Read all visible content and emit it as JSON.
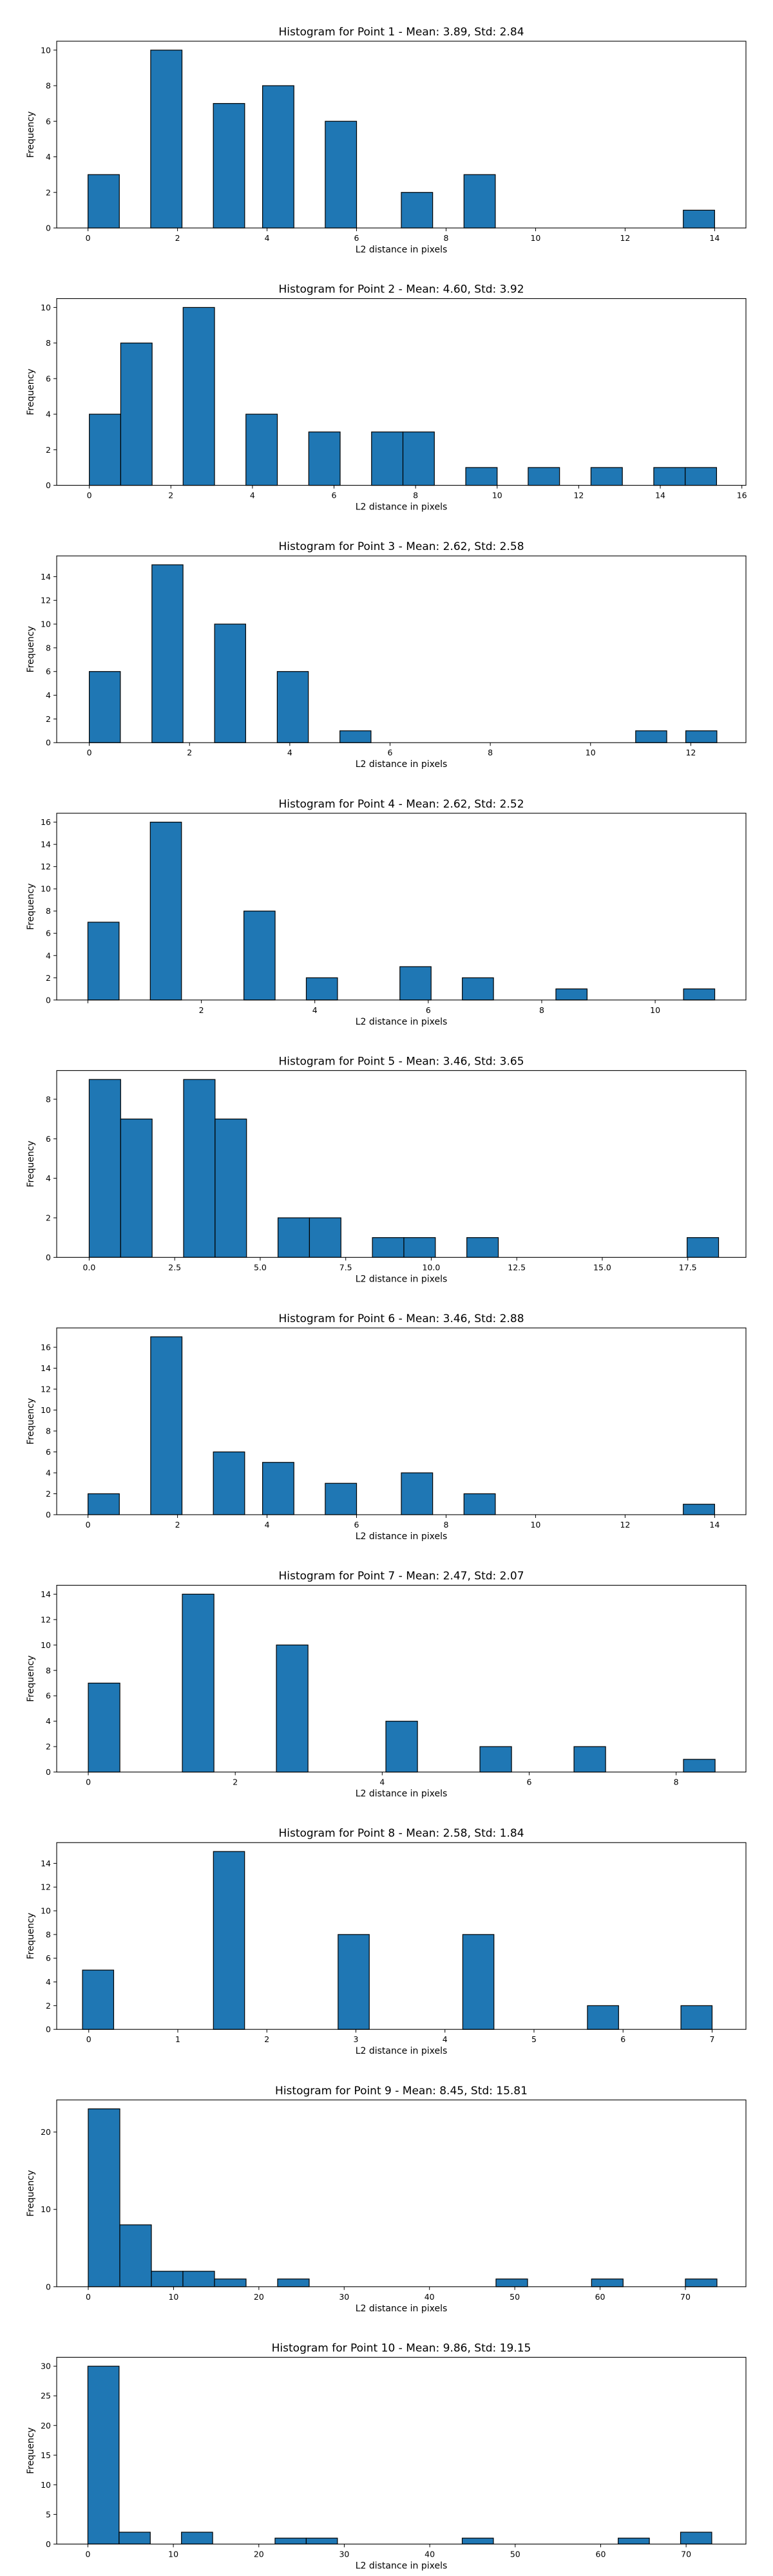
{
  "chart_data": [
    {
      "type": "bar",
      "title": "Histogram for Point 1 - Mean: 3.89, Std: 2.84",
      "xlabel": "L2 distance in pixels",
      "ylabel": "Frequency",
      "xlim": [
        -0.7,
        14.7
      ],
      "ylim": [
        0,
        10.5
      ],
      "xticks": [
        0,
        2,
        4,
        6,
        8,
        10,
        12,
        14
      ],
      "xtick_labels": [
        "0",
        "2",
        "4",
        "6",
        "8",
        "10",
        "12",
        "14"
      ],
      "yticks": [
        0,
        2,
        4,
        6,
        8,
        10
      ],
      "bins": [
        {
          "x0": 0.0,
          "x1": 0.7,
          "count": 3
        },
        {
          "x0": 1.4,
          "x1": 2.1,
          "count": 10
        },
        {
          "x0": 2.8,
          "x1": 3.5,
          "count": 7
        },
        {
          "x0": 3.9,
          "x1": 4.6,
          "count": 8
        },
        {
          "x0": 5.3,
          "x1": 6.0,
          "count": 6
        },
        {
          "x0": 7.0,
          "x1": 7.7,
          "count": 2
        },
        {
          "x0": 8.4,
          "x1": 9.1,
          "count": 3
        },
        {
          "x0": 13.3,
          "x1": 14.0,
          "count": 1
        }
      ]
    },
    {
      "type": "bar",
      "title": "Histogram for Point 2 - Mean: 4.60, Std: 3.92",
      "xlabel": "L2 distance in pixels",
      "ylabel": "Frequency",
      "xlim": [
        -0.8,
        16.1
      ],
      "ylim": [
        0,
        10.5
      ],
      "xticks": [
        0,
        2,
        4,
        6,
        8,
        10,
        12,
        14,
        16
      ],
      "xtick_labels": [
        "0",
        "2",
        "4",
        "6",
        "8",
        "10",
        "12",
        "14",
        "16"
      ],
      "yticks": [
        0,
        2,
        4,
        6,
        8,
        10
      ],
      "bins": [
        {
          "x0": 0.0,
          "x1": 0.77,
          "count": 4
        },
        {
          "x0": 0.77,
          "x1": 1.54,
          "count": 8
        },
        {
          "x0": 2.3,
          "x1": 3.07,
          "count": 10
        },
        {
          "x0": 3.84,
          "x1": 4.61,
          "count": 4
        },
        {
          "x0": 5.38,
          "x1": 6.15,
          "count": 3
        },
        {
          "x0": 6.92,
          "x1": 7.69,
          "count": 3
        },
        {
          "x0": 7.69,
          "x1": 8.46,
          "count": 3
        },
        {
          "x0": 9.23,
          "x1": 10.0,
          "count": 1
        },
        {
          "x0": 10.76,
          "x1": 11.53,
          "count": 1
        },
        {
          "x0": 12.3,
          "x1": 13.07,
          "count": 1
        },
        {
          "x0": 13.84,
          "x1": 14.61,
          "count": 1
        },
        {
          "x0": 14.61,
          "x1": 15.38,
          "count": 1
        }
      ]
    },
    {
      "type": "bar",
      "title": "Histogram for Point 3 - Mean: 2.62, Std: 2.58",
      "xlabel": "L2 distance in pixels",
      "ylabel": "Frequency",
      "xlim": [
        -0.65,
        13.1
      ],
      "ylim": [
        0,
        15.75
      ],
      "xticks": [
        0,
        2,
        4,
        6,
        8,
        10,
        12
      ],
      "xtick_labels": [
        "0",
        "2",
        "4",
        "6",
        "8",
        "10",
        "12"
      ],
      "yticks": [
        0,
        2,
        4,
        6,
        8,
        10,
        12,
        14
      ],
      "bins": [
        {
          "x0": 0.0,
          "x1": 0.62,
          "count": 6
        },
        {
          "x0": 1.25,
          "x1": 1.87,
          "count": 15
        },
        {
          "x0": 2.5,
          "x1": 3.12,
          "count": 10
        },
        {
          "x0": 3.75,
          "x1": 4.37,
          "count": 6
        },
        {
          "x0": 5.0,
          "x1": 5.62,
          "count": 1
        },
        {
          "x0": 10.9,
          "x1": 11.52,
          "count": 1
        },
        {
          "x0": 11.9,
          "x1": 12.52,
          "count": 1
        }
      ]
    },
    {
      "type": "bar",
      "title": "Histogram for Point 4 - Mean: 2.62, Std: 2.52",
      "xlabel": "L2 distance in pixels",
      "ylabel": "Frequency",
      "xlim": [
        -0.55,
        11.6
      ],
      "ylim": [
        0,
        16.8
      ],
      "xticks": [
        0,
        2,
        4,
        6,
        8,
        10
      ],
      "xtick_labels": [
        "",
        "2",
        "4",
        "6",
        "8",
        "10"
      ],
      "yticks": [
        0,
        2,
        4,
        6,
        8,
        10,
        12,
        14,
        16
      ],
      "bins": [
        {
          "x0": 0.0,
          "x1": 0.55,
          "count": 7
        },
        {
          "x0": 1.1,
          "x1": 1.65,
          "count": 16
        },
        {
          "x0": 2.75,
          "x1": 3.3,
          "count": 8
        },
        {
          "x0": 3.85,
          "x1": 4.4,
          "count": 2
        },
        {
          "x0": 5.5,
          "x1": 6.05,
          "count": 3
        },
        {
          "x0": 6.6,
          "x1": 7.15,
          "count": 2
        },
        {
          "x0": 8.25,
          "x1": 8.8,
          "count": 1
        },
        {
          "x0": 10.5,
          "x1": 11.05,
          "count": 1
        }
      ]
    },
    {
      "type": "bar",
      "title": "Histogram for Point 5 - Mean: 3.46, Std: 3.65",
      "xlabel": "L2 distance in pixels",
      "ylabel": "Frequency",
      "xlim": [
        -0.95,
        19.2
      ],
      "ylim": [
        0,
        9.45
      ],
      "xticks": [
        0,
        2.5,
        5,
        7.5,
        10,
        12.5,
        15,
        17.5
      ],
      "xtick_labels": [
        "0.0",
        "2.5",
        "5.0",
        "7.5",
        "10.0",
        "12.5",
        "15.0",
        "17.5"
      ],
      "yticks": [
        0,
        2,
        4,
        6,
        8
      ],
      "bins": [
        {
          "x0": 0.0,
          "x1": 0.92,
          "count": 9
        },
        {
          "x0": 0.92,
          "x1": 1.84,
          "count": 7
        },
        {
          "x0": 2.76,
          "x1": 3.68,
          "count": 9
        },
        {
          "x0": 3.68,
          "x1": 4.6,
          "count": 7
        },
        {
          "x0": 5.52,
          "x1": 6.44,
          "count": 2
        },
        {
          "x0": 6.44,
          "x1": 7.36,
          "count": 2
        },
        {
          "x0": 8.28,
          "x1": 9.2,
          "count": 1
        },
        {
          "x0": 9.2,
          "x1": 10.12,
          "count": 1
        },
        {
          "x0": 11.04,
          "x1": 11.96,
          "count": 1
        },
        {
          "x0": 17.48,
          "x1": 18.4,
          "count": 1
        }
      ]
    },
    {
      "type": "bar",
      "title": "Histogram for Point 6 - Mean: 3.46, Std: 2.88",
      "xlabel": "L2 distance in pixels",
      "ylabel": "Frequency",
      "xlim": [
        -0.7,
        14.7
      ],
      "ylim": [
        0,
        17.85
      ],
      "xticks": [
        0,
        2,
        4,
        6,
        8,
        10,
        12,
        14
      ],
      "xtick_labels": [
        "0",
        "2",
        "4",
        "6",
        "8",
        "10",
        "12",
        "14"
      ],
      "yticks": [
        0,
        2,
        4,
        6,
        8,
        10,
        12,
        14,
        16
      ],
      "bins": [
        {
          "x0": 0.0,
          "x1": 0.7,
          "count": 2
        },
        {
          "x0": 1.4,
          "x1": 2.1,
          "count": 17
        },
        {
          "x0": 2.8,
          "x1": 3.5,
          "count": 6
        },
        {
          "x0": 3.9,
          "x1": 4.6,
          "count": 5
        },
        {
          "x0": 5.3,
          "x1": 6.0,
          "count": 3
        },
        {
          "x0": 7.0,
          "x1": 7.7,
          "count": 4
        },
        {
          "x0": 8.4,
          "x1": 9.1,
          "count": 2
        },
        {
          "x0": 13.3,
          "x1": 14.0,
          "count": 1
        }
      ]
    },
    {
      "type": "bar",
      "title": "Histogram for Point 7 - Mean: 2.47, Std: 2.07",
      "xlabel": "L2 distance in pixels",
      "ylabel": "Frequency",
      "xlim": [
        -0.43,
        8.95
      ],
      "ylim": [
        0,
        14.7
      ],
      "xticks": [
        0,
        2,
        4,
        6,
        8
      ],
      "xtick_labels": [
        "0",
        "2",
        "4",
        "6",
        "8"
      ],
      "yticks": [
        0,
        2,
        4,
        6,
        8,
        10,
        12,
        14
      ],
      "bins": [
        {
          "x0": 0.0,
          "x1": 0.43,
          "count": 7
        },
        {
          "x0": 1.28,
          "x1": 1.71,
          "count": 14
        },
        {
          "x0": 2.56,
          "x1": 2.99,
          "count": 10
        },
        {
          "x0": 4.05,
          "x1": 4.48,
          "count": 4
        },
        {
          "x0": 5.33,
          "x1": 5.76,
          "count": 2
        },
        {
          "x0": 6.61,
          "x1": 7.04,
          "count": 2
        },
        {
          "x0": 8.1,
          "x1": 8.53,
          "count": 1
        }
      ]
    },
    {
      "type": "bar",
      "title": "Histogram for Point 8 - Mean: 2.58, Std: 1.84",
      "xlabel": "L2 distance in pixels",
      "ylabel": "Frequency",
      "xlim": [
        -0.36,
        7.38
      ],
      "ylim": [
        0,
        15.75
      ],
      "xticks": [
        0,
        1,
        2,
        3,
        4,
        5,
        6,
        7
      ],
      "xtick_labels": [
        "0",
        "1",
        "2",
        "3",
        "4",
        "5",
        "6",
        "7"
      ],
      "yticks": [
        0,
        2,
        4,
        6,
        8,
        10,
        12,
        14
      ],
      "bins": [
        {
          "x0": -0.07,
          "x1": 0.28,
          "count": 5
        },
        {
          "x0": 1.4,
          "x1": 1.75,
          "count": 15
        },
        {
          "x0": 2.8,
          "x1": 3.15,
          "count": 8
        },
        {
          "x0": 4.2,
          "x1": 4.55,
          "count": 8
        },
        {
          "x0": 5.6,
          "x1": 5.95,
          "count": 2
        },
        {
          "x0": 6.65,
          "x1": 7.0,
          "count": 2
        }
      ]
    },
    {
      "type": "bar",
      "title": "Histogram for Point 9 - Mean: 8.45, Std: 15.81",
      "xlabel": "L2 distance in pixels",
      "ylabel": "Frequency",
      "xlim": [
        -3.7,
        77.1
      ],
      "ylim": [
        0,
        24.15
      ],
      "xticks": [
        0,
        10,
        20,
        30,
        40,
        50,
        60,
        70
      ],
      "xtick_labels": [
        "0",
        "10",
        "20",
        "30",
        "40",
        "50",
        "60",
        "70"
      ],
      "yticks": [
        0,
        10,
        20
      ],
      "bins": [
        {
          "x0": 0.0,
          "x1": 3.7,
          "count": 23
        },
        {
          "x0": 3.7,
          "x1": 7.4,
          "count": 8
        },
        {
          "x0": 7.4,
          "x1": 11.1,
          "count": 2
        },
        {
          "x0": 11.1,
          "x1": 14.8,
          "count": 2
        },
        {
          "x0": 14.8,
          "x1": 18.5,
          "count": 1
        },
        {
          "x0": 22.2,
          "x1": 25.9,
          "count": 1
        },
        {
          "x0": 47.8,
          "x1": 51.5,
          "count": 1
        },
        {
          "x0": 59.0,
          "x1": 62.7,
          "count": 1
        },
        {
          "x0": 70.0,
          "x1": 73.7,
          "count": 1
        }
      ]
    },
    {
      "type": "bar",
      "title": "Histogram for Point 10 - Mean: 9.86, Std: 19.15",
      "xlabel": "L2 distance in pixels",
      "ylabel": "Frequency",
      "xlim": [
        -3.65,
        77.0
      ],
      "ylim": [
        0,
        31.5
      ],
      "xticks": [
        0,
        10,
        20,
        30,
        40,
        50,
        60,
        70
      ],
      "xtick_labels": [
        "0",
        "10",
        "20",
        "30",
        "40",
        "50",
        "60",
        "70"
      ],
      "yticks": [
        0,
        5,
        10,
        15,
        20,
        25,
        30
      ],
      "bins": [
        {
          "x0": 0.0,
          "x1": 3.65,
          "count": 30
        },
        {
          "x0": 3.65,
          "x1": 7.3,
          "count": 2
        },
        {
          "x0": 10.95,
          "x1": 14.6,
          "count": 2
        },
        {
          "x0": 21.9,
          "x1": 25.55,
          "count": 1
        },
        {
          "x0": 25.55,
          "x1": 29.2,
          "count": 1
        },
        {
          "x0": 43.8,
          "x1": 47.45,
          "count": 1
        },
        {
          "x0": 62.05,
          "x1": 65.7,
          "count": 1
        },
        {
          "x0": 69.35,
          "x1": 73.0,
          "count": 2
        }
      ]
    }
  ]
}
